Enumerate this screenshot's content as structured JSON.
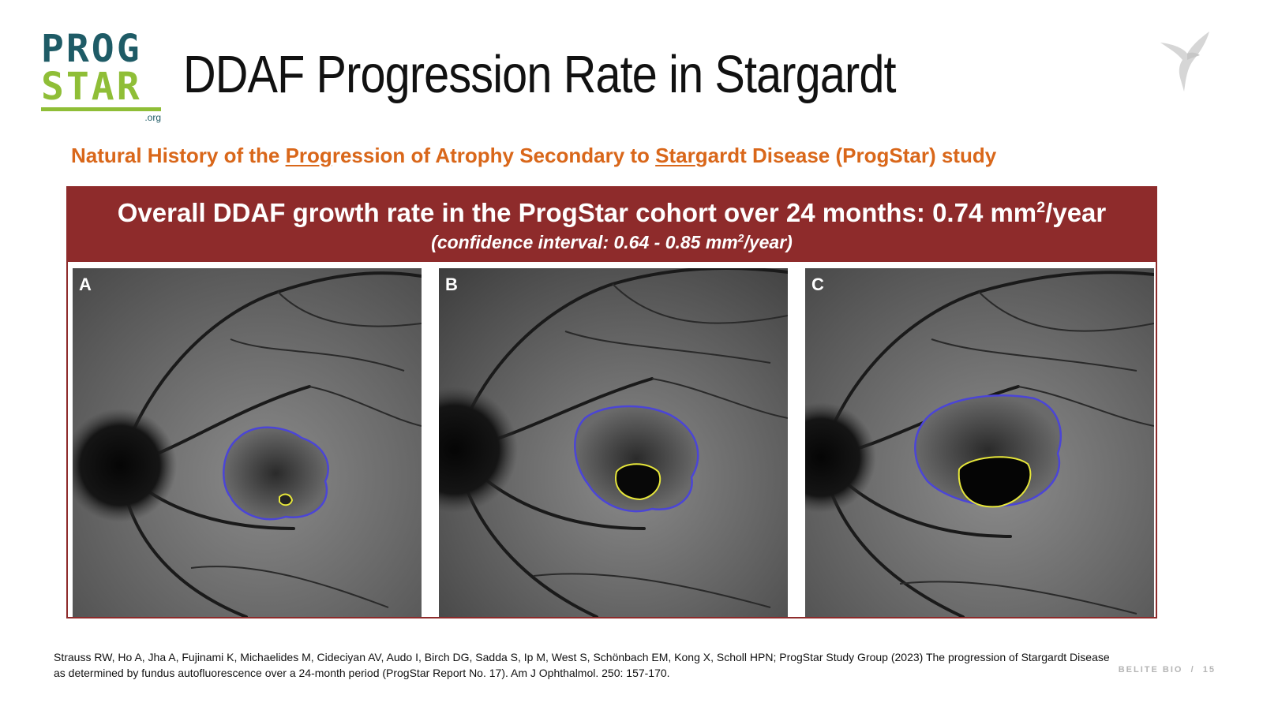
{
  "logo": {
    "line1": "PROG",
    "line2": "STAR",
    "suffix": ".org"
  },
  "title": "DDAF Progression Rate in Stargardt",
  "subtitle": {
    "part1": "Natural History of the ",
    "prog_underlined": "Prog",
    "part2": "ression of Atrophy Secondary to ",
    "star_underlined": "Star",
    "part3": "gardt Disease (ProgStar) study"
  },
  "banner": {
    "headline_prefix": "Overall DDAF growth rate in the ProgStar cohort over 24 months: 0.74 mm",
    "headline_sup": "2",
    "headline_suffix": "/year",
    "ci_prefix": "(confidence interval: 0.64 - 0.85 mm",
    "ci_sup": "2",
    "ci_suffix": "/year)"
  },
  "images": [
    {
      "label": "A"
    },
    {
      "label": "B"
    },
    {
      "label": "C"
    }
  ],
  "citation": "Strauss RW, Ho A, Jha A, Fujinami K, Michaelides M, Cideciyan AV, Audo I, Birch DG, Sadda S, Ip M, West S, Schönbach EM, Kong X, Scholl HPN; ProgStar Study Group (2023) The progression of Stargardt Disease as determined by fundus autofluorescence over a 24-month period (ProgStar Report No. 17). Am J Ophthalmol. 250: 157-170.",
  "footer": {
    "brand": "BELITE BIO",
    "separator": "/",
    "page": "15"
  },
  "colors": {
    "banner_bg": "#8e2b2b",
    "subtitle": "#d9671a",
    "logo_teal": "#1e5b66",
    "logo_green": "#8fbe37",
    "outline_blue": "#4b45d6",
    "outline_yellow": "#e6e63a"
  }
}
